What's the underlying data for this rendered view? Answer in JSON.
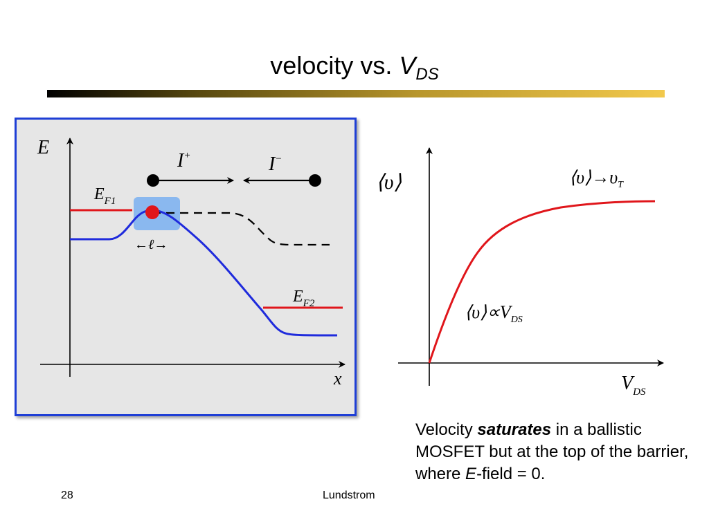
{
  "slide": {
    "title_prefix": "velocity vs. ",
    "title_var": "V",
    "title_sub": "DS",
    "page_number": "28",
    "author": "Lundstrom"
  },
  "band_diagram": {
    "axis_y": "E",
    "axis_x": "x",
    "current_plus": "I",
    "current_plus_sup": "+",
    "current_minus": "I",
    "current_minus_sup": "−",
    "fermi1": "E",
    "fermi1_sub": "F1",
    "fermi2": "E",
    "fermi2_sub": "F2",
    "length": "←ℓ→",
    "colors": {
      "band": "#1f2bdc",
      "fermi": "#e0161b",
      "panel_border": "#1f3fd6",
      "highlight": "#7fb2f0"
    }
  },
  "velocity_plot": {
    "axis_y": "⟨υ⟩",
    "axis_x": "V",
    "axis_x_sub": "DS",
    "saturation_label": "⟨υ⟩→υ",
    "saturation_sub": "T",
    "linear_label": "⟨υ⟩∝V",
    "linear_sub": "DS",
    "curve_color": "#e0161b"
  },
  "caption": {
    "part1": "Velocity ",
    "emphasis": "saturates",
    "part2": " in a ballistic MOSFET but at the top of the barrier, where ",
    "field_var": "E",
    "part3": "-field = 0."
  }
}
